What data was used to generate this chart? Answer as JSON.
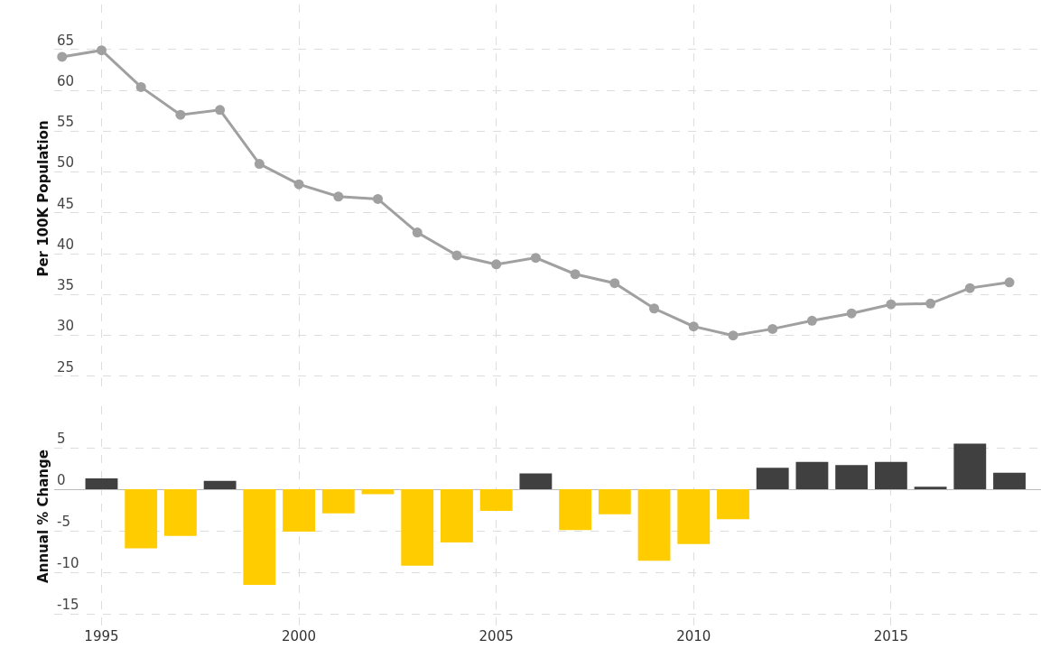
{
  "chart_data": [
    {
      "type": "line",
      "ylabel": "Per 100K Population",
      "x": [
        1994,
        1995,
        1996,
        1997,
        1998,
        1999,
        2000,
        2001,
        2002,
        2003,
        2004,
        2005,
        2006,
        2007,
        2008,
        2009,
        2010,
        2011,
        2012,
        2013,
        2014,
        2015,
        2016,
        2017,
        2018
      ],
      "series": [
        {
          "color": "#a0a0a0",
          "values": [
            64.1,
            64.9,
            60.4,
            57.0,
            57.6,
            51.0,
            48.5,
            47.0,
            46.7,
            42.6,
            39.8,
            38.7,
            39.5,
            37.5,
            36.4,
            33.3,
            31.1,
            30.0,
            30.8,
            31.8,
            32.7,
            33.8,
            33.9,
            35.8,
            36.5
          ]
        }
      ],
      "xlim": [
        1993.8,
        2018.8
      ],
      "xticks": [
        1995,
        2000,
        2005,
        2010,
        2015
      ],
      "ylim": [
        23,
        70.5
      ],
      "yticks": [
        25,
        30,
        35,
        40,
        45,
        50,
        55,
        60,
        65
      ],
      "tick_labels": "y",
      "grid": true,
      "marker": "circle",
      "line_style": "solid"
    },
    {
      "type": "bar",
      "ylabel": "Annual % Change",
      "x": [
        1995,
        1996,
        1997,
        1998,
        1999,
        2000,
        2001,
        2002,
        2003,
        2004,
        2005,
        2006,
        2007,
        2008,
        2009,
        2010,
        2011,
        2012,
        2013,
        2014,
        2015,
        2016,
        2017,
        2018
      ],
      "values": [
        1.3,
        -7.1,
        -5.6,
        1.0,
        -11.5,
        -5.1,
        -2.9,
        -0.6,
        -9.2,
        -6.4,
        -2.6,
        1.9,
        -4.9,
        -3.0,
        -8.6,
        -6.6,
        -3.6,
        2.6,
        3.3,
        2.9,
        3.3,
        0.3,
        5.5,
        2.0
      ],
      "colors": [
        "#404040",
        "#ffcc00",
        "#ffcc00",
        "#404040",
        "#ffcc00",
        "#ffcc00",
        "#ffcc00",
        "#ffcc00",
        "#ffcc00",
        "#ffcc00",
        "#ffcc00",
        "#404040",
        "#ffcc00",
        "#ffcc00",
        "#ffcc00",
        "#ffcc00",
        "#ffcc00",
        "#404040",
        "#404040",
        "#404040",
        "#404040",
        "#404040",
        "#404040",
        "#404040"
      ],
      "xlim": [
        1993.8,
        2018.8
      ],
      "xticks": [
        1995,
        2000,
        2005,
        2010,
        2015
      ],
      "ylim": [
        -16.5,
        10
      ],
      "yticks": [
        -15,
        -10,
        -5,
        0,
        5
      ],
      "grid": true
    }
  ]
}
